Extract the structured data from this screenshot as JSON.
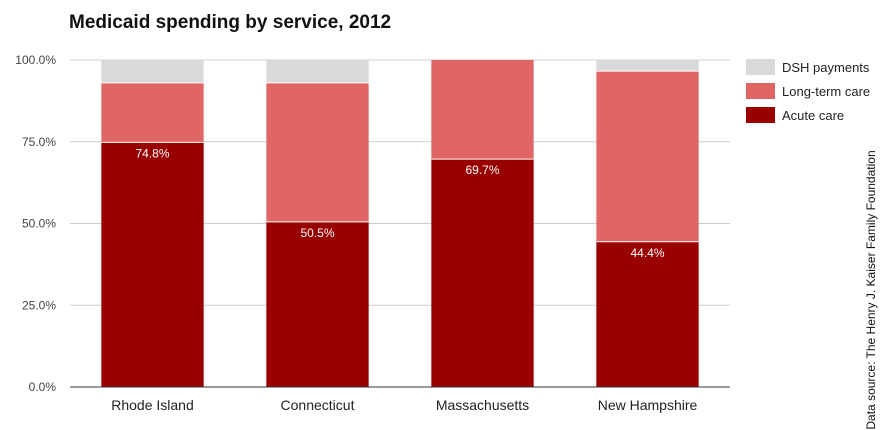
{
  "chart_data": {
    "type": "bar",
    "stacked": true,
    "title": "Medicaid spending by service, 2012",
    "xlabel": "",
    "ylabel": "",
    "ylim": [
      0,
      100
    ],
    "yticks": [
      "0.0%",
      "25.0%",
      "50.0%",
      "75.0%",
      "100.0%"
    ],
    "categories": [
      "Rhode Island",
      "Connecticut",
      "Massachusetts",
      "New Hampshire"
    ],
    "series": [
      {
        "name": "Acute care",
        "color": "#990000",
        "values": [
          74.8,
          50.5,
          69.7,
          44.4
        ],
        "labels": [
          "74.8%",
          "50.5%",
          "69.7%",
          "44.4%"
        ]
      },
      {
        "name": "Long-term care",
        "color": "#e06666",
        "values": [
          18.2,
          42.5,
          30.3,
          52.2
        ]
      },
      {
        "name": "DSH payments",
        "color": "#d9d9d9",
        "values": [
          7.0,
          7.0,
          0.0,
          3.4
        ]
      }
    ],
    "legend": {
      "position": "right",
      "order": [
        "DSH payments",
        "Long-term care",
        "Acute care"
      ]
    },
    "grid": true,
    "source_note": "Data source: The Henry J. Kaiser Family Foundation"
  }
}
